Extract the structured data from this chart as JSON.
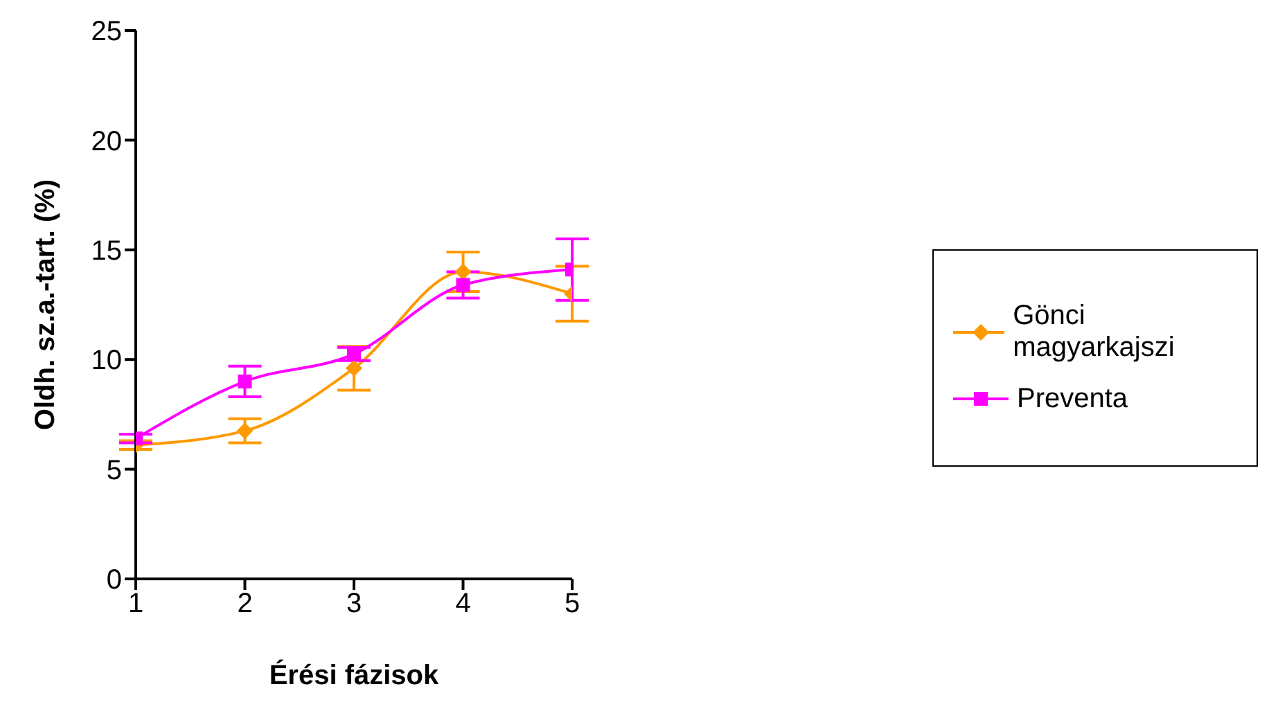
{
  "chart_data": {
    "type": "line",
    "xlabel": "Érési fázisok",
    "ylabel": "Oldh. sz.a.-tart. (%)",
    "x": [
      1,
      2,
      3,
      4,
      5
    ],
    "xlim": [
      1,
      5
    ],
    "xticks": [
      1,
      2,
      3,
      4,
      5
    ],
    "ylim": [
      0,
      25
    ],
    "yticks": [
      0,
      5,
      10,
      15,
      20,
      25
    ],
    "grid": false,
    "legend": "right",
    "series": [
      {
        "name": "Gönci magyarkajszi",
        "color": "#ff9900",
        "marker": "diamond",
        "values": [
          6.1,
          6.75,
          9.6,
          14.0,
          13.0
        ],
        "errors": [
          0.2,
          0.55,
          1.0,
          0.9,
          1.25
        ]
      },
      {
        "name": "Preventa",
        "color": "#ff00ff",
        "marker": "square",
        "values": [
          6.4,
          9.0,
          10.25,
          13.4,
          14.1
        ],
        "errors": [
          0.2,
          0.7,
          0.3,
          0.6,
          1.4
        ]
      }
    ]
  }
}
